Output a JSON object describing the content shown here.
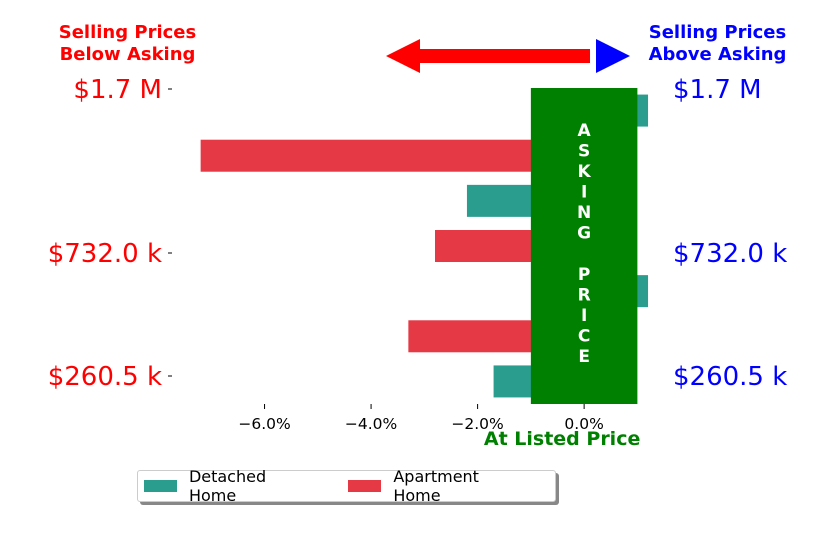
{
  "header": {
    "left_title": "Selling Prices\nBelow Asking",
    "right_title": "Selling Prices\nAbove Asking",
    "left_color": "#ff0000",
    "right_color": "#0000ff"
  },
  "asking_label": "ASKING\n\nPRICE",
  "listed_label": "At Listed Price",
  "colors": {
    "detached": "#2a9d8f",
    "apartment": "#e63946",
    "asking": "#008000",
    "left_arrow": "#ff0000",
    "right_arrow": "#0000ff"
  },
  "chart_data": {
    "type": "bar",
    "orientation": "horizontal",
    "xlim": [
      -7.7,
      1.8
    ],
    "x_ticks": [
      -6,
      -4,
      -2,
      0
    ],
    "x_tick_labels": [
      "−6.0%",
      "−4.0%",
      "−2.0%",
      "0.0%"
    ],
    "price_labels": [
      "$1.7 M",
      "$732.0 k",
      "$260.5 k"
    ],
    "bars": [
      {
        "series": "Detached Home",
        "value": 1.2
      },
      {
        "series": "Apartment Home",
        "value": -7.2
      },
      {
        "series": "Detached Home",
        "value": -2.2
      },
      {
        "series": "Apartment Home",
        "value": -2.8
      },
      {
        "series": "Detached Home",
        "value": 1.2
      },
      {
        "series": "Apartment Home",
        "value": -3.3
      },
      {
        "series": "Detached Home",
        "value": -1.7
      }
    ],
    "asking_band": [
      -1.0,
      1.0
    ],
    "legend": [
      "Detached Home",
      "Apartment Home"
    ],
    "legend_position": "bottom-center"
  }
}
